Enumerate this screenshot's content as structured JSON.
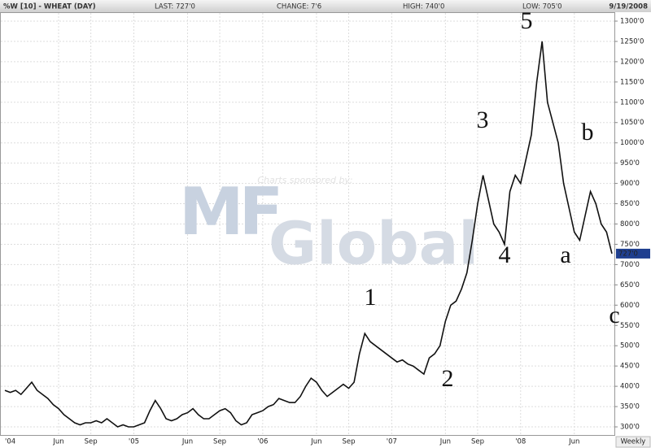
{
  "header": {
    "symbol": "%W [10] - WHEAT (DAY)",
    "last": "LAST: 727'0",
    "change": "CHANGE: 7'6",
    "high": "HIGH: 740'0",
    "low": "LOW: 705'0",
    "date": "9/19/2008"
  },
  "watermark": {
    "caption": "Charts sponsored by:",
    "logo_top": "MF",
    "logo_bottom": "Global"
  },
  "period_button": "Weekly",
  "chart_data": {
    "type": "line",
    "color": "#111111",
    "grid": true,
    "categories": [
      "'04",
      null,
      null,
      null,
      null,
      null,
      null,
      null,
      null,
      null,
      "Jun",
      null,
      null,
      null,
      null,
      null,
      "Sep",
      null,
      null,
      null,
      null,
      null,
      null,
      null,
      "'05",
      null,
      null,
      null,
      null,
      null,
      null,
      null,
      null,
      null,
      "Jun",
      null,
      null,
      null,
      null,
      null,
      "Sep",
      null,
      null,
      null,
      null,
      null,
      null,
      null,
      "'06",
      null,
      null,
      null,
      null,
      null,
      null,
      null,
      null,
      null,
      "Jun",
      null,
      null,
      null,
      null,
      null,
      "Sep",
      null,
      null,
      null,
      null,
      null,
      null,
      null,
      "'07",
      null,
      null,
      null,
      null,
      null,
      null,
      null,
      null,
      null,
      "Jun",
      null,
      null,
      null,
      null,
      null,
      "Sep",
      null,
      null,
      null,
      null,
      null,
      null,
      null,
      "'08",
      null,
      null,
      null,
      null,
      null,
      null,
      null,
      null,
      null,
      "Jun",
      null,
      null,
      null,
      null,
      null,
      null,
      null
    ],
    "values": [
      390,
      385,
      390,
      380,
      395,
      410,
      390,
      380,
      370,
      355,
      345,
      330,
      320,
      310,
      305,
      310,
      310,
      315,
      310,
      320,
      310,
      300,
      305,
      300,
      300,
      305,
      310,
      340,
      365,
      345,
      320,
      315,
      320,
      330,
      335,
      345,
      330,
      320,
      320,
      330,
      340,
      345,
      335,
      315,
      305,
      310,
      330,
      335,
      340,
      350,
      355,
      370,
      365,
      360,
      360,
      375,
      400,
      420,
      410,
      390,
      375,
      385,
      395,
      405,
      395,
      410,
      480,
      530,
      510,
      500,
      490,
      480,
      470,
      460,
      465,
      455,
      450,
      440,
      430,
      470,
      480,
      500,
      560,
      600,
      610,
      640,
      680,
      760,
      850,
      920,
      860,
      800,
      780,
      750,
      880,
      920,
      900,
      960,
      1020,
      1150,
      1250,
      1100,
      1050,
      1000,
      900,
      840,
      780,
      760,
      820,
      880,
      850,
      800,
      780,
      727
    ],
    "ylim": [
      280,
      1320
    ],
    "yticks": [
      {
        "value": 300,
        "label": "300'0"
      },
      {
        "value": 350,
        "label": "350'0"
      },
      {
        "value": 400,
        "label": "400'0"
      },
      {
        "value": 450,
        "label": "450'0"
      },
      {
        "value": 500,
        "label": "500'0"
      },
      {
        "value": 550,
        "label": "550'0"
      },
      {
        "value": 600,
        "label": "600'0"
      },
      {
        "value": 650,
        "label": "650'0"
      },
      {
        "value": 700,
        "label": "700'0"
      },
      {
        "value": 750,
        "label": "750'0"
      },
      {
        "value": 800,
        "label": "800'0"
      },
      {
        "value": 850,
        "label": "850'0"
      },
      {
        "value": 900,
        "label": "900'0"
      },
      {
        "value": 950,
        "label": "950'0"
      },
      {
        "value": 1000,
        "label": "1000'0"
      },
      {
        "value": 1050,
        "label": "1050'0"
      },
      {
        "value": 1100,
        "label": "1100'0"
      },
      {
        "value": 1150,
        "label": "1150'0"
      },
      {
        "value": 1200,
        "label": "1200'0"
      },
      {
        "value": 1250,
        "label": "1250'0"
      },
      {
        "value": 1300,
        "label": "1300'0"
      }
    ],
    "last_tag": {
      "value": 727,
      "label": "727'0"
    },
    "annotations": [
      "1",
      "2",
      "3",
      "4",
      "5",
      "a",
      "b",
      "c"
    ]
  }
}
